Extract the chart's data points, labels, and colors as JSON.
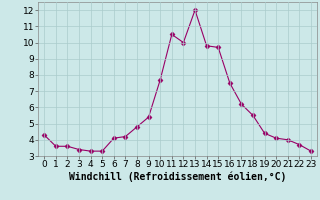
{
  "x": [
    0,
    1,
    2,
    3,
    4,
    5,
    6,
    7,
    8,
    9,
    10,
    11,
    12,
    13,
    14,
    15,
    16,
    17,
    18,
    19,
    20,
    21,
    22,
    23
  ],
  "y": [
    4.3,
    3.6,
    3.6,
    3.4,
    3.3,
    3.3,
    4.1,
    4.2,
    4.8,
    5.4,
    7.7,
    10.5,
    10.0,
    12.0,
    9.8,
    9.7,
    7.5,
    6.2,
    5.5,
    4.4,
    4.1,
    4.0,
    3.7,
    3.3
  ],
  "line_color": "#990066",
  "marker": "D",
  "marker_size": 2.5,
  "background_color": "#cce8e8",
  "grid_color": "#aacccc",
  "xlabel": "Windchill (Refroidissement éolien,°C)",
  "xlabel_fontsize": 7,
  "ylabel_ticks": [
    3,
    4,
    5,
    6,
    7,
    8,
    9,
    10,
    11,
    12
  ],
  "xticks": [
    0,
    1,
    2,
    3,
    4,
    5,
    6,
    7,
    8,
    9,
    10,
    11,
    12,
    13,
    14,
    15,
    16,
    17,
    18,
    19,
    20,
    21,
    22,
    23
  ],
  "xlim": [
    -0.5,
    23.5
  ],
  "ylim": [
    3,
    12.5
  ],
  "tick_fontsize": 6.5
}
